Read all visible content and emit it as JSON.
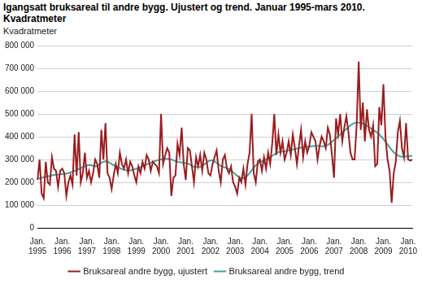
{
  "chart_data": {
    "type": "line",
    "title": "Igangsatt bruksareal til andre bygg. Ujustert og trend. Januar 1995-mars 2010. Kvadratmeter",
    "y_label": "Kvadratmeter",
    "categories": [
      "Jan. 1995",
      null,
      null,
      null,
      null,
      null,
      null,
      null,
      null,
      null,
      null,
      null,
      "Jan. 1996",
      null,
      null,
      null,
      null,
      null,
      null,
      null,
      null,
      null,
      null,
      null,
      "Jan. 1997",
      null,
      null,
      null,
      null,
      null,
      null,
      null,
      null,
      null,
      null,
      null,
      "Jan. 1998",
      null,
      null,
      null,
      null,
      null,
      null,
      null,
      null,
      null,
      null,
      null,
      "Jan. 1999",
      null,
      null,
      null,
      null,
      null,
      null,
      null,
      null,
      null,
      null,
      null,
      "Jan. 2000",
      null,
      null,
      null,
      null,
      null,
      null,
      null,
      null,
      null,
      null,
      null,
      "Jan. 2001",
      null,
      null,
      null,
      null,
      null,
      null,
      null,
      null,
      null,
      null,
      null,
      "Jan. 2002",
      null,
      null,
      null,
      null,
      null,
      null,
      null,
      null,
      null,
      null,
      null,
      "Jan. 2003",
      null,
      null,
      null,
      null,
      null,
      null,
      null,
      null,
      null,
      null,
      null,
      "Jan. 2004",
      null,
      null,
      null,
      null,
      null,
      null,
      null,
      null,
      null,
      null,
      null,
      "Jan. 2005",
      null,
      null,
      null,
      null,
      null,
      null,
      null,
      null,
      null,
      null,
      null,
      "Jan. 2006",
      null,
      null,
      null,
      null,
      null,
      null,
      null,
      null,
      null,
      null,
      null,
      "Jan. 2007",
      null,
      null,
      null,
      null,
      null,
      null,
      null,
      null,
      null,
      null,
      null,
      "Jan. 2008",
      null,
      null,
      null,
      null,
      null,
      null,
      null,
      null,
      null,
      null,
      null,
      "Jan. 2009",
      null,
      null,
      null,
      null,
      null,
      null,
      null,
      null,
      null,
      null,
      null,
      "Jan. 2010",
      null,
      null
    ],
    "series": [
      {
        "name": "Bruksareal andre bygg, ujustert",
        "color": "#9b1c1f",
        "values": [
          210000,
          300000,
          150000,
          130000,
          290000,
          200000,
          190000,
          310000,
          260000,
          250000,
          180000,
          250000,
          260000,
          240000,
          140000,
          200000,
          230000,
          190000,
          410000,
          230000,
          420000,
          200000,
          240000,
          330000,
          220000,
          250000,
          200000,
          240000,
          300000,
          280000,
          220000,
          430000,
          300000,
          460000,
          240000,
          220000,
          170000,
          230000,
          280000,
          240000,
          330000,
          280000,
          260000,
          300000,
          240000,
          290000,
          270000,
          230000,
          200000,
          270000,
          240000,
          290000,
          260000,
          320000,
          300000,
          250000,
          290000,
          280000,
          270000,
          240000,
          500000,
          280000,
          320000,
          350000,
          330000,
          140000,
          220000,
          230000,
          370000,
          320000,
          440000,
          280000,
          210000,
          350000,
          340000,
          270000,
          200000,
          310000,
          270000,
          320000,
          250000,
          330000,
          300000,
          240000,
          230000,
          280000,
          310000,
          340000,
          250000,
          200000,
          300000,
          320000,
          260000,
          240000,
          270000,
          200000,
          180000,
          150000,
          220000,
          200000,
          260000,
          190000,
          280000,
          330000,
          500000,
          240000,
          200000,
          290000,
          300000,
          250000,
          310000,
          260000,
          330000,
          280000,
          370000,
          500000,
          320000,
          410000,
          330000,
          380000,
          300000,
          330000,
          380000,
          320000,
          410000,
          350000,
          280000,
          360000,
          430000,
          310000,
          380000,
          330000,
          360000,
          420000,
          400000,
          380000,
          300000,
          360000,
          400000,
          380000,
          350000,
          440000,
          410000,
          320000,
          220000,
          480000,
          410000,
          500000,
          380000,
          440000,
          490000,
          420000,
          330000,
          300000,
          300000,
          450000,
          730000,
          430000,
          550000,
          380000,
          520000,
          430000,
          400000,
          450000,
          270000,
          280000,
          530000,
          450000,
          630000,
          400000,
          300000,
          250000,
          110000,
          240000,
          290000,
          420000,
          470000,
          350000,
          310000,
          460000,
          300000,
          295000,
          300000
        ]
      },
      {
        "name": "Bruksareal andre bygg, trend",
        "color": "#3fa6a0",
        "values": [
          215000,
          218000,
          220000,
          222000,
          224000,
          226000,
          228000,
          230000,
          232000,
          233000,
          234000,
          235000,
          236000,
          237000,
          238000,
          240000,
          243000,
          246000,
          250000,
          254000,
          258000,
          262000,
          266000,
          270000,
          274000,
          276000,
          275000,
          272000,
          270000,
          272000,
          278000,
          285000,
          290000,
          292000,
          290000,
          286000,
          280000,
          275000,
          270000,
          266000,
          262000,
          258000,
          255000,
          253000,
          252000,
          252000,
          254000,
          257000,
          260000,
          263000,
          266000,
          270000,
          274000,
          278000,
          282000,
          286000,
          290000,
          293000,
          296000,
          298000,
          300000,
          302000,
          303000,
          303000,
          302000,
          300000,
          297000,
          293000,
          290000,
          288000,
          287000,
          286000,
          284000,
          282000,
          278000,
          272000,
          268000,
          266000,
          266000,
          268000,
          272000,
          278000,
          285000,
          292000,
          296000,
          296000,
          292000,
          285000,
          278000,
          272000,
          268000,
          265000,
          262000,
          258000,
          252000,
          245000,
          236000,
          228000,
          222000,
          218000,
          218000,
          222000,
          230000,
          240000,
          252000,
          264000,
          274000,
          282000,
          288000,
          292000,
          296000,
          300000,
          305000,
          310000,
          316000,
          322000,
          328000,
          332000,
          334000,
          335000,
          336000,
          338000,
          340000,
          342000,
          344000,
          346000,
          348000,
          350000,
          352000,
          354000,
          355000,
          356000,
          357000,
          358000,
          359000,
          360000,
          360000,
          359000,
          358000,
          358000,
          360000,
          364000,
          370000,
          378000,
          386000,
          394000,
          402000,
          410000,
          418000,
          426000,
          434000,
          442000,
          450000,
          456000,
          460000,
          462000,
          462000,
          460000,
          457000,
          453000,
          448000,
          442000,
          436000,
          430000,
          424000,
          418000,
          410000,
          400000,
          390000,
          378000,
          366000,
          354000,
          342000,
          332000,
          324000,
          318000,
          314000,
          312000,
          312000,
          313000,
          314000,
          315000,
          316000
        ]
      }
    ],
    "ylim": [
      0,
      800000
    ],
    "yticks": [
      0,
      {
        "value": 100000,
        "label": "100 000"
      },
      {
        "value": 200000,
        "label": "200 000"
      },
      {
        "value": 300000,
        "label": "300 000"
      },
      {
        "value": 400000,
        "label": "400 000"
      },
      {
        "value": 500000,
        "label": "500 000"
      },
      {
        "value": 600000,
        "label": "600 000"
      },
      {
        "value": 700000,
        "label": "700 000"
      },
      {
        "value": 800000,
        "label": "800 000"
      }
    ],
    "grid": true,
    "legend": "bottom"
  }
}
